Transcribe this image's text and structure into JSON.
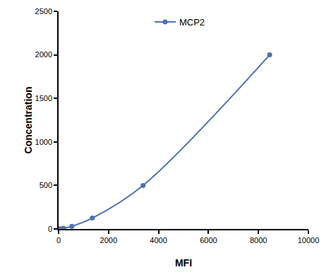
{
  "chart_data": {
    "type": "line",
    "series": [
      {
        "name": "MCP2",
        "color": "#4a72b8",
        "marker": "circle",
        "line_style": "smooth",
        "x": [
          30,
          80,
          200,
          530,
          1350,
          3380,
          8450
        ],
        "values": [
          0,
          2,
          8,
          31,
          125,
          500,
          2000
        ]
      }
    ],
    "x_label": "MFI",
    "y_label": "Concentration",
    "xlim": [
      0,
      10000
    ],
    "xticks": [
      0,
      2000,
      4000,
      6000,
      8000,
      10000
    ],
    "ylim": [
      0,
      2500
    ],
    "yticks": [
      0,
      500,
      1000,
      1500,
      2000,
      2500
    ],
    "grid": false,
    "legend": "top"
  }
}
